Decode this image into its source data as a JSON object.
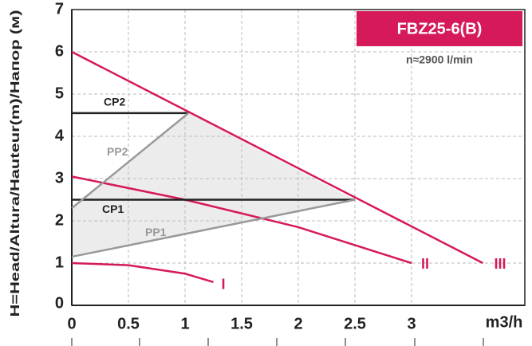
{
  "chart_data": {
    "type": "line",
    "title": "FBZ25-6(B)",
    "subtitle": "n≈2900 l/min",
    "y_label": "H=Head/Altura/Hauteur(m)/Напор (м)",
    "x_label": "m3/h",
    "xlim": [
      0,
      4
    ],
    "ylim": [
      0,
      7
    ],
    "xticks": [
      0,
      0.5,
      1,
      1.5,
      2,
      2.5,
      3
    ],
    "yticks": [
      0,
      1,
      2,
      3,
      4,
      5,
      6,
      7
    ],
    "grid": true,
    "series": [
      {
        "name": "III",
        "color": "#d6195a",
        "x": [
          0,
          3.63
        ],
        "values": [
          6,
          1
        ]
      },
      {
        "name": "II",
        "color": "#d6195a",
        "x": [
          0,
          1,
          2,
          3
        ],
        "values": [
          3.05,
          2.5,
          1.85,
          1.0
        ]
      },
      {
        "name": "I",
        "color": "#d6195a",
        "x": [
          0,
          0.5,
          1,
          1.25
        ],
        "values": [
          1.0,
          0.95,
          0.75,
          0.55
        ]
      },
      {
        "name": "CP2",
        "color": "#222222",
        "x": [
          0,
          1.03
        ],
        "values": [
          4.55,
          4.55
        ]
      },
      {
        "name": "CP1",
        "color": "#222222",
        "x": [
          0,
          2.5
        ],
        "values": [
          2.5,
          2.5
        ]
      },
      {
        "name": "PP2",
        "color": "#999999",
        "x": [
          0,
          1.03
        ],
        "values": [
          2.3,
          4.55
        ]
      },
      {
        "name": "PP1",
        "color": "#999999",
        "x": [
          0,
          2.5
        ],
        "values": [
          1.15,
          2.5
        ]
      }
    ]
  }
}
